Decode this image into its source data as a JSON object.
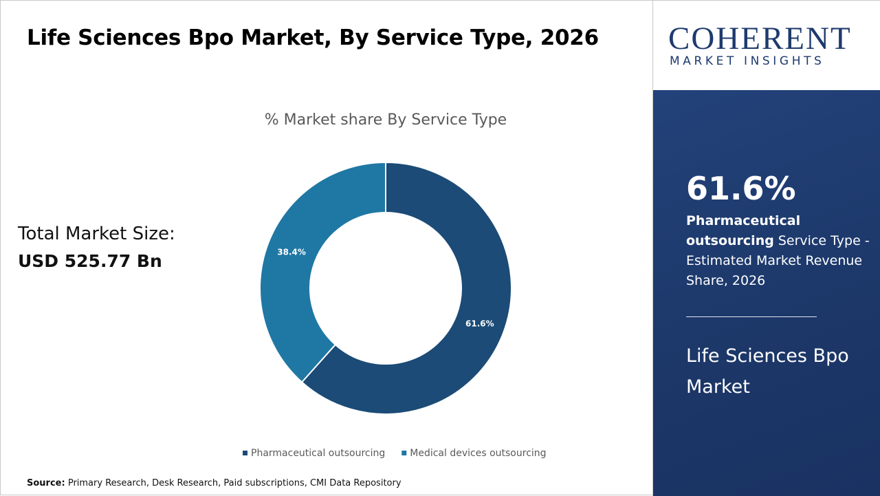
{
  "title": "Life Sciences Bpo Market, By Service Type, 2026",
  "market_size": {
    "label": "Total Market Size:",
    "value": "USD 525.77 Bn"
  },
  "chart_data": {
    "type": "donut",
    "title": "% Market share By Service Type",
    "categories": [
      "Pharmaceutical outsourcing",
      "Medical devices outsourcing"
    ],
    "values": [
      61.6,
      38.4
    ],
    "value_labels": [
      "61.6%",
      "38.4%"
    ],
    "colors": [
      "#1b4b76",
      "#1f77a4"
    ],
    "legend": "bottom"
  },
  "logo": {
    "name": "COHERENT",
    "tagline": "MARKET INSIGHTS"
  },
  "highlight": {
    "value": "61.6%",
    "segment": "Pharmaceutical outsourcing",
    "text": "Service Type - Estimated Market Revenue Share, 2026",
    "market": "Life Sciences Bpo Market"
  },
  "source": {
    "label": "Source:",
    "text": "Primary Research, Desk Research, Paid subscriptions, CMI Data Repository"
  }
}
